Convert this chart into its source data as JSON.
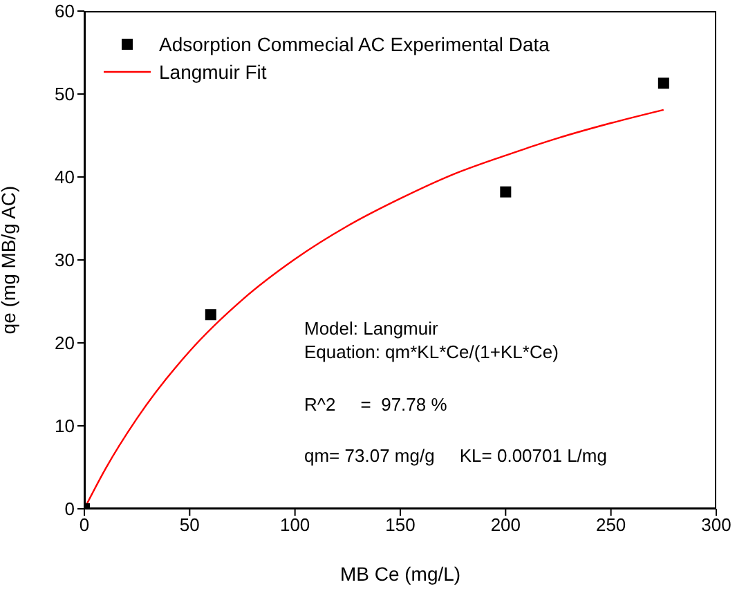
{
  "chart_data": {
    "type": "scatter",
    "xlabel": "MB Ce (mg/L)",
    "ylabel": "qe (mg MB/g AC)",
    "xlim": [
      0,
      300
    ],
    "xticks": [
      0,
      50,
      100,
      150,
      200,
      250,
      300
    ],
    "ylim": [
      0,
      60
    ],
    "yticks": [
      0,
      10,
      20,
      30,
      40,
      50,
      60
    ],
    "grid": false,
    "legend": "top left",
    "series": [
      {
        "name": "Adsorption Commecial AC Experimental Data",
        "color": "#000000",
        "marker": "square",
        "x": [
          0,
          60,
          200,
          275
        ],
        "values": [
          0,
          23.4,
          38.2,
          51.3
        ]
      },
      {
        "name": "Langmuir Fit",
        "type": "line",
        "color": "#ff0000",
        "marker": "none",
        "line_style": "solid",
        "x": [
          0,
          10,
          25,
          50,
          75,
          100,
          125,
          150,
          175,
          200,
          225,
          250,
          275
        ],
        "values": [
          0,
          4.8,
          10.9,
          19.0,
          25.2,
          30.1,
          34.1,
          37.4,
          40.3,
          42.6,
          44.7,
          46.5,
          48.1
        ]
      }
    ],
    "annotations": [
      "Model: Langmuir",
      "Equation: qm*KL*Ce/(1+KL*Ce)",
      "R^2     =  97.78 %",
      "qm= 73.07 mg/g     KL= 0.00701 L/mg"
    ]
  }
}
